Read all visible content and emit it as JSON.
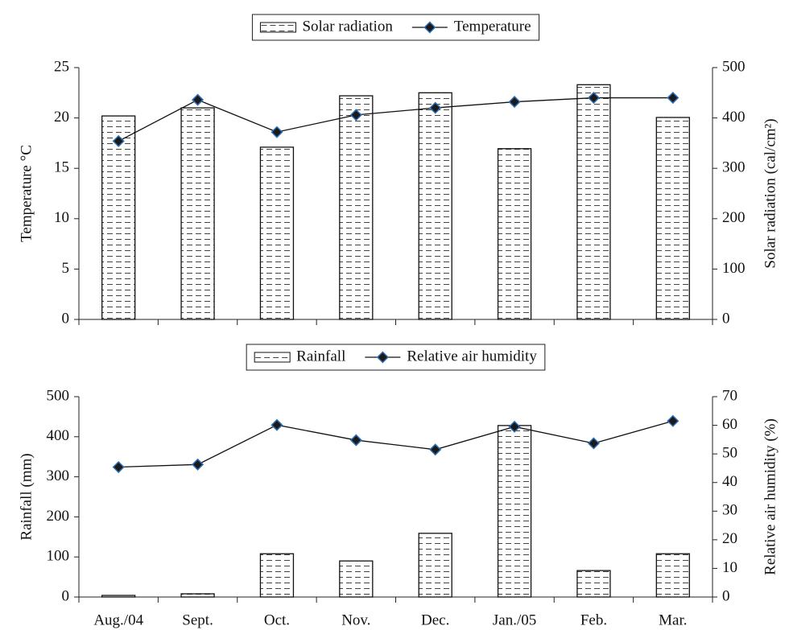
{
  "chart_data": [
    {
      "type": "combo",
      "ylabel": "Temperature °C",
      "y2label": "Solar radiation (cal/cm²)",
      "ylim": [
        0,
        25
      ],
      "yticks": [
        0,
        5,
        10,
        15,
        20,
        25
      ],
      "y2lim": [
        0,
        500
      ],
      "y2ticks": [
        0,
        100,
        200,
        300,
        400,
        500
      ],
      "series": [
        {
          "name": "Solar radiation",
          "mark": "bar",
          "axis": "y2",
          "color": "#333333",
          "values": [
            404,
            420,
            342,
            444,
            450,
            339,
            466,
            401
          ]
        },
        {
          "name": "Temperature",
          "mark": "line",
          "axis": "y",
          "color": "#2e6fb5",
          "values": [
            17.7,
            21.8,
            18.6,
            20.3,
            21.0,
            21.6,
            22.0,
            22.0
          ]
        }
      ]
    },
    {
      "type": "combo",
      "ylabel": "Rainfall (mm)",
      "y2label": "Relative air humidity (%)",
      "categories": [
        "Aug./04",
        "Sept.",
        "Oct.",
        "Nov.",
        "Dec.",
        "Jan./05",
        "Feb.",
        "Mar."
      ],
      "ylim": [
        0,
        500
      ],
      "yticks": [
        0,
        100,
        200,
        300,
        400,
        500
      ],
      "y2lim": [
        0,
        70
      ],
      "y2ticks": [
        0,
        10,
        20,
        30,
        40,
        50,
        60,
        70
      ],
      "series": [
        {
          "name": "Rainfall",
          "mark": "bar",
          "axis": "y",
          "color": "#333333",
          "values": [
            4,
            8,
            108,
            90,
            159,
            428,
            66,
            108
          ]
        },
        {
          "name": "Relative air humidity",
          "mark": "line",
          "axis": "y2",
          "color": "#2e6fb5",
          "values": [
            45.4,
            46.3,
            60.1,
            54.8,
            51.5,
            59.5,
            53.7,
            61.5
          ]
        }
      ]
    }
  ]
}
